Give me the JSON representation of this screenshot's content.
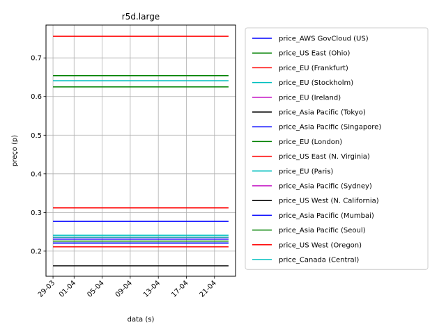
{
  "chart_data": {
    "type": "line",
    "title": "r5d.large",
    "xlabel": "data (s)",
    "ylabel": "preço (p)",
    "x_range": [
      "2019-03-29",
      "2019-04-23"
    ],
    "xlim": [
      "2019-03-28",
      "2019-04-24"
    ],
    "ylim": [
      0.135,
      0.785
    ],
    "xticks": [
      {
        "date": "2019-03-29",
        "label": "29-03"
      },
      {
        "date": "2019-04-01",
        "label": "01-04"
      },
      {
        "date": "2019-04-05",
        "label": "05-04"
      },
      {
        "date": "2019-04-09",
        "label": "09-04"
      },
      {
        "date": "2019-04-13",
        "label": "13-04"
      },
      {
        "date": "2019-04-17",
        "label": "17-04"
      },
      {
        "date": "2019-04-21",
        "label": "21-04"
      }
    ],
    "yticks": [
      0.2,
      0.3,
      0.4,
      0.5,
      0.6,
      0.7
    ],
    "grid": true,
    "legend_position": "right",
    "series": [
      {
        "name": "price_AWS GovCloud (US)",
        "color": "#0000ff",
        "value": 0.277
      },
      {
        "name": "price_US East (Ohio)",
        "color": "#008000",
        "value": 0.226
      },
      {
        "name": "price_EU (Frankfurt)",
        "color": "#ff0000",
        "value": 0.756
      },
      {
        "name": "price_EU (Stockholm)",
        "color": "#00bfbf",
        "value": 0.641
      },
      {
        "name": "price_EU (Ireland)",
        "color": "#bf00bf",
        "value": 0.231
      },
      {
        "name": "price_Asia Pacific (Tokyo)",
        "color": "#000000",
        "value": 0.162
      },
      {
        "name": "price_Asia Pacific (Singapore)",
        "color": "#0000ff",
        "value": 0.221
      },
      {
        "name": "price_EU (London)",
        "color": "#008000",
        "value": 0.654
      },
      {
        "name": "price_US East (N. Virginia)",
        "color": "#ff0000",
        "value": 0.312
      },
      {
        "name": "price_EU (Paris)",
        "color": "#00bfbf",
        "value": 0.241
      },
      {
        "name": "price_Asia Pacific (Sydney)",
        "color": "#bf00bf",
        "value": 0.236
      },
      {
        "name": "price_US West (N. California)",
        "color": "#000000",
        "value": 0.236
      },
      {
        "name": "price_Asia Pacific (Mumbai)",
        "color": "#0000ff",
        "value": 0.231
      },
      {
        "name": "price_Asia Pacific (Seoul)",
        "color": "#008000",
        "value": 0.625
      },
      {
        "name": "price_US West (Oregon)",
        "color": "#ff0000",
        "value": 0.211
      },
      {
        "name": "price_Canada (Central)",
        "color": "#00bfbf",
        "value": 0.236
      }
    ]
  }
}
